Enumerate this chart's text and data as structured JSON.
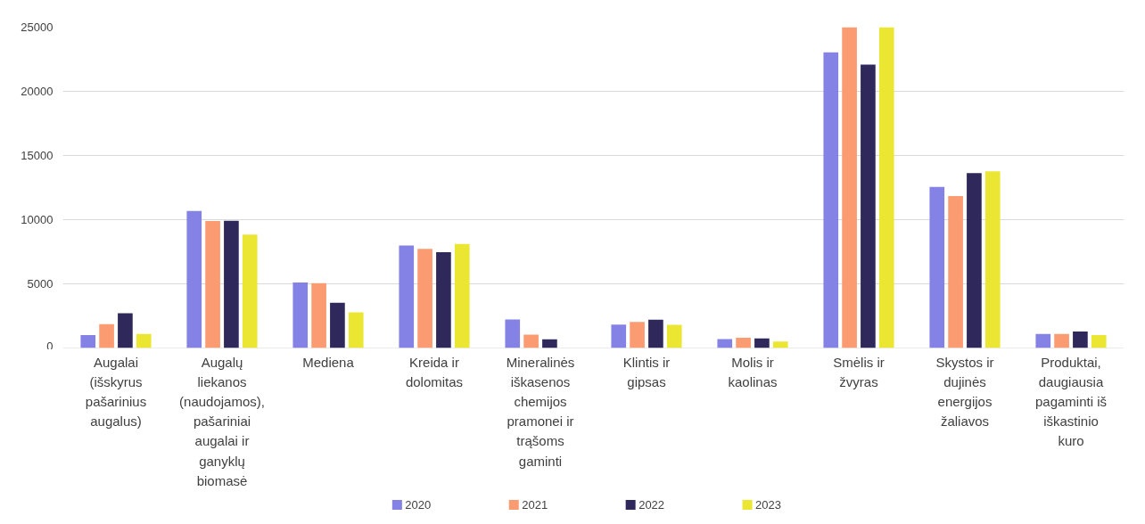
{
  "chart_data": {
    "type": "bar",
    "categories": [
      "Augalai (išskyrus pašarinius augalus)",
      "Augalų liekanos (naudojamos), pašariniai augalai ir ganyklų biomasė",
      "Mediena",
      "Kreida ir dolomitas",
      "Mineralinės iškasenos chemijos pramonei ir trąšoms gaminti",
      "Klintis ir gipsas",
      "Molis ir kaolinas",
      "Smėlis ir žvyras",
      "Skystos ir dujinės energijos žaliavos",
      "Produktai, daugiausia pagaminti iš iškastinio kuro"
    ],
    "series": [
      {
        "name": "2020",
        "color": "#8482e4",
        "values": [
          1000,
          10680,
          5110,
          7980,
          2220,
          1830,
          700,
          23030,
          12560,
          1090
        ]
      },
      {
        "name": "2021",
        "color": "#fa9b72",
        "values": [
          1850,
          9890,
          5060,
          7730,
          1050,
          2030,
          800,
          25000,
          11840,
          1100
        ]
      },
      {
        "name": "2022",
        "color": "#2f285a",
        "values": [
          2700,
          9910,
          3520,
          7470,
          680,
          2200,
          750,
          22080,
          13620,
          1290
        ]
      },
      {
        "name": "2023",
        "color": "#ebe631",
        "values": [
          1100,
          8840,
          2780,
          8100,
          null,
          1800,
          500,
          25000,
          13760,
          1000
        ]
      }
    ],
    "ylim": [
      0,
      25000
    ],
    "yticks": [
      0,
      5000,
      10000,
      15000,
      20000,
      25000
    ],
    "grid": "y",
    "legend": "bottom"
  }
}
